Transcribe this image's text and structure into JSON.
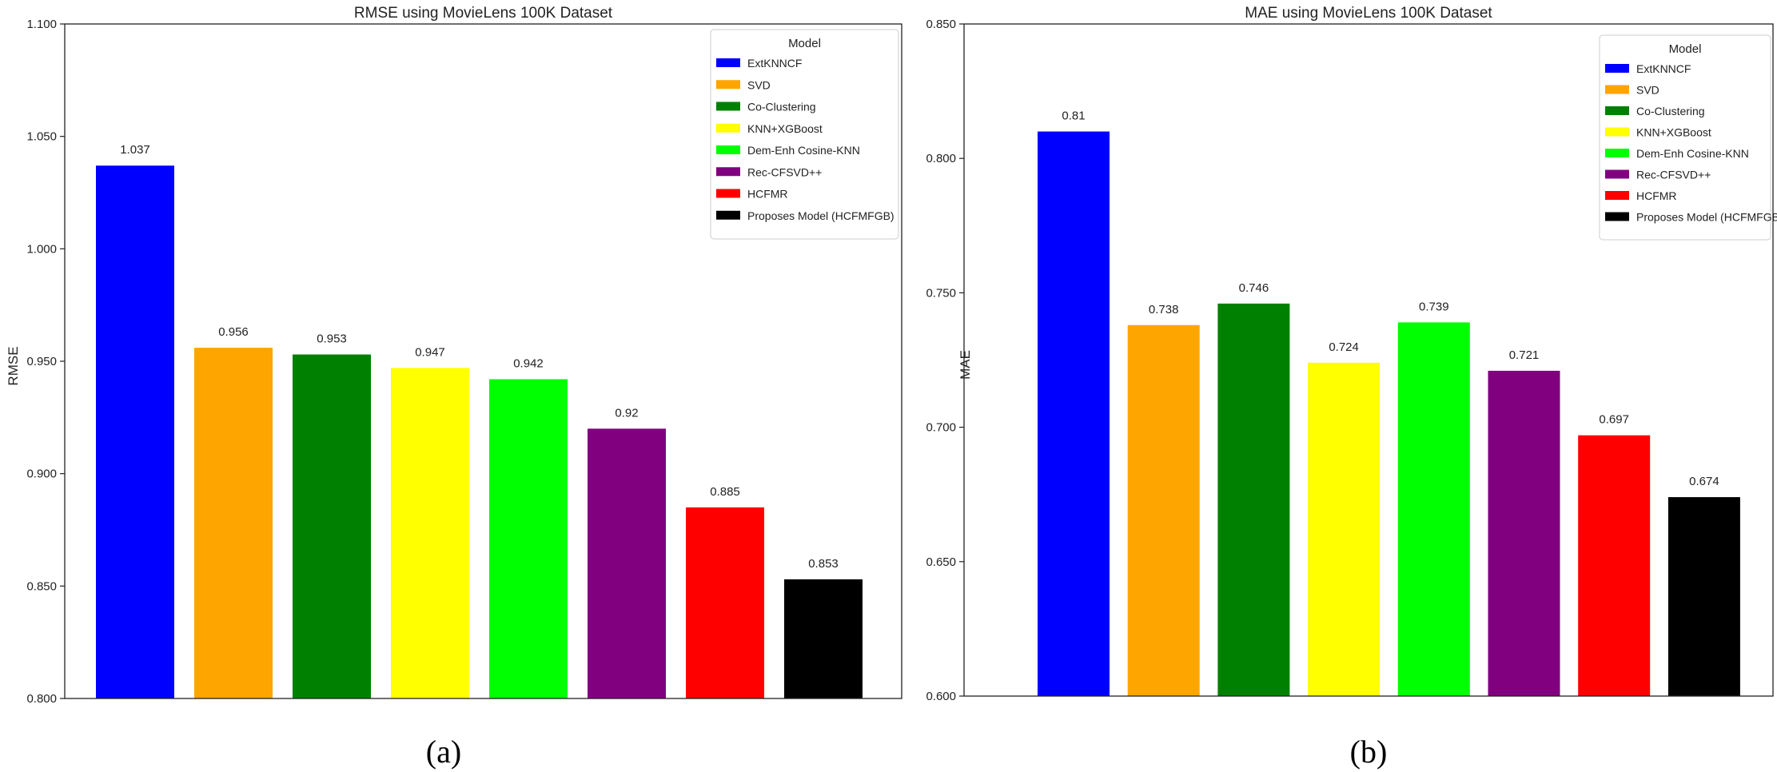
{
  "chart_data": [
    {
      "type": "bar",
      "title": "RMSE using MovieLens 100K Dataset",
      "xlabel": "",
      "ylabel": "RMSE",
      "ylim": [
        0.8,
        1.1
      ],
      "yticks": [
        0.8,
        0.85,
        0.9,
        0.95,
        1.0,
        1.05,
        1.1
      ],
      "ytick_labels": [
        "0.800",
        "0.850",
        "0.900",
        "0.950",
        "1.000",
        "1.050",
        "1.100"
      ],
      "categories": [
        "ExtKNNCF",
        "SVD",
        "Co-Clustering",
        "KNN+XGBoost",
        "Dem-Enh Cosine-KNN",
        "Rec-CFSVD++",
        "HCFMR",
        "Proposes Model (HCFMFGB)"
      ],
      "values": [
        1.037,
        0.956,
        0.953,
        0.947,
        0.942,
        0.92,
        0.885,
        0.853
      ],
      "value_labels": [
        "1.037",
        "0.956",
        "0.953",
        "0.947",
        "0.942",
        "0.92",
        "0.885",
        "0.853"
      ],
      "colors": [
        "#0000ff",
        "#ffa500",
        "#008000",
        "#ffff00",
        "#00ff00",
        "#800080",
        "#ff0000",
        "#000000"
      ],
      "legend_title": "Model",
      "legend_position": "top-right",
      "caption": "(a)"
    },
    {
      "type": "bar",
      "title": "MAE using MovieLens 100K Dataset",
      "xlabel": "",
      "ylabel": "MAE",
      "ylim": [
        0.6,
        0.85
      ],
      "yticks": [
        0.6,
        0.65,
        0.7,
        0.75,
        0.8,
        0.85
      ],
      "ytick_labels": [
        "0.600",
        "0.650",
        "0.700",
        "0.750",
        "0.800",
        "0.850"
      ],
      "categories": [
        "ExtKNNCF",
        "SVD",
        "Co-Clustering",
        "KNN+XGBoost",
        "Dem-Enh Cosine-KNN",
        "Rec-CFSVD++",
        "HCFMR",
        "Proposes Model (HCFMFGB)"
      ],
      "values": [
        0.81,
        0.738,
        0.746,
        0.724,
        0.739,
        0.721,
        0.697,
        0.674
      ],
      "value_labels": [
        "0.81",
        "0.738",
        "0.746",
        "0.724",
        "0.739",
        "0.721",
        "0.697",
        "0.674"
      ],
      "colors": [
        "#0000ff",
        "#ffa500",
        "#008000",
        "#ffff00",
        "#00ff00",
        "#800080",
        "#ff0000",
        "#000000"
      ],
      "legend_title": "Model",
      "legend_position": "top-right",
      "caption": "(b)"
    }
  ]
}
